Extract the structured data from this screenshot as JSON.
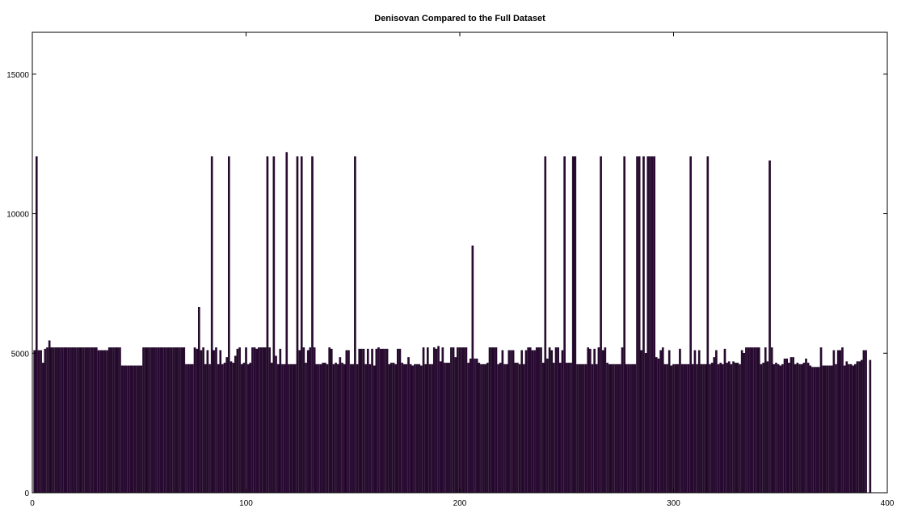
{
  "chart_data": {
    "type": "bar",
    "title": "Denisovan Compared to the Full Dataset",
    "xlabel": "",
    "ylabel": "",
    "xlim": [
      0,
      400
    ],
    "ylim": [
      0,
      16500
    ],
    "xticks": [
      0,
      100,
      200,
      300,
      400
    ],
    "yticks": [
      0,
      5000,
      10000,
      15000
    ],
    "grid": false,
    "bar_color": "#2a0a33",
    "x_start": 1,
    "values": [
      5100,
      12050,
      5100,
      5100,
      4650,
      5150,
      5200,
      5450,
      5200,
      5200,
      5200,
      5200,
      5200,
      5200,
      5200,
      5200,
      5200,
      5200,
      5200,
      5200,
      5200,
      5200,
      5200,
      5200,
      5200,
      5200,
      5200,
      5200,
      5200,
      5200,
      5100,
      5100,
      5100,
      5100,
      5100,
      5200,
      5200,
      5200,
      5200,
      5200,
      5200,
      4550,
      4550,
      4550,
      4550,
      4550,
      4550,
      4550,
      4550,
      4550,
      4550,
      5200,
      5200,
      5200,
      5200,
      5200,
      5200,
      5200,
      5200,
      5200,
      5200,
      5200,
      5200,
      5200,
      5200,
      5200,
      5200,
      5200,
      5200,
      5200,
      5200,
      4600,
      4600,
      4600,
      4600,
      5200,
      5150,
      6650,
      5100,
      5200,
      4600,
      5100,
      4600,
      12050,
      5100,
      5200,
      4600,
      5100,
      4600,
      4650,
      4850,
      12050,
      4700,
      4650,
      4900,
      5150,
      5200,
      4600,
      4650,
      5200,
      4600,
      4650,
      5200,
      5200,
      5150,
      5200,
      5200,
      5200,
      5200,
      12050,
      5200,
      4650,
      12050,
      4900,
      4600,
      5150,
      4600,
      4600,
      12200,
      4600,
      4600,
      4600,
      4600,
      12050,
      5100,
      12050,
      5200,
      4650,
      5100,
      5200,
      12050,
      5200,
      4600,
      4600,
      4600,
      4650,
      4650,
      4600,
      5200,
      5150,
      4600,
      4650,
      4600,
      4850,
      4650,
      4600,
      5100,
      5100,
      4600,
      4600,
      12050,
      4600,
      5150,
      5150,
      5150,
      4600,
      5150,
      4600,
      5150,
      4550,
      5150,
      5200,
      5150,
      5150,
      5150,
      5150,
      4600,
      4650,
      4650,
      4600,
      5150,
      5150,
      4650,
      4600,
      4600,
      4850,
      4600,
      4550,
      4600,
      4600,
      4600,
      4550,
      5200,
      4600,
      5200,
      4600,
      4600,
      5200,
      5150,
      5250,
      4700,
      5200,
      4650,
      4650,
      4650,
      5200,
      5200,
      4850,
      5200,
      5200,
      5200,
      5200,
      5200,
      4650,
      4800,
      8850,
      4800,
      4800,
      4650,
      4600,
      4600,
      4600,
      4650,
      5200,
      5200,
      5200,
      5200,
      4600,
      4650,
      5100,
      4600,
      4600,
      5100,
      5100,
      5100,
      4650,
      4650,
      4600,
      5100,
      4600,
      5100,
      5200,
      5200,
      5100,
      5100,
      5200,
      5200,
      5200,
      4650,
      12050,
      4800,
      5200,
      5100,
      4650,
      5200,
      5200,
      4650,
      5100,
      12050,
      4650,
      4650,
      4650,
      12050,
      12050,
      4600,
      4600,
      4600,
      4600,
      4600,
      5200,
      5150,
      4600,
      5150,
      4600,
      5200,
      12050,
      5100,
      5200,
      4650,
      4600,
      4600,
      4600,
      4600,
      4600,
      4600,
      5200,
      12050,
      4600,
      4600,
      4600,
      4600,
      4600,
      12050,
      12050,
      5100,
      12050,
      5000,
      12050,
      12050,
      12050,
      12050,
      4850,
      4800,
      5100,
      5200,
      4600,
      4600,
      5100,
      4550,
      4600,
      4600,
      4600,
      5150,
      4600,
      4600,
      4600,
      4600,
      12050,
      4600,
      5100,
      4600,
      5100,
      4600,
      4600,
      4600,
      12050,
      4600,
      4650,
      4850,
      5100,
      4600,
      4650,
      4600,
      5150,
      4650,
      4700,
      4600,
      4700,
      4650,
      4650,
      4600,
      5100,
      5000,
      5200,
      5200,
      5200,
      5200,
      5200,
      5200,
      5200,
      4600,
      4650,
      5200,
      4700,
      11900,
      5200,
      4600,
      4650,
      4600,
      4550,
      4600,
      4800,
      4800,
      4650,
      4850,
      4850,
      4600,
      4650,
      4600,
      4600,
      4650,
      4800,
      4650,
      4550,
      4500,
      4500,
      4500,
      4500,
      5200,
      4550,
      4550,
      4550,
      4550,
      4550,
      5100,
      4600,
      5100,
      5100,
      5200,
      4550,
      4700,
      4600,
      4600,
      4550,
      4600,
      4700,
      4700,
      4750,
      5100,
      5100,
      0,
      4750
    ]
  }
}
